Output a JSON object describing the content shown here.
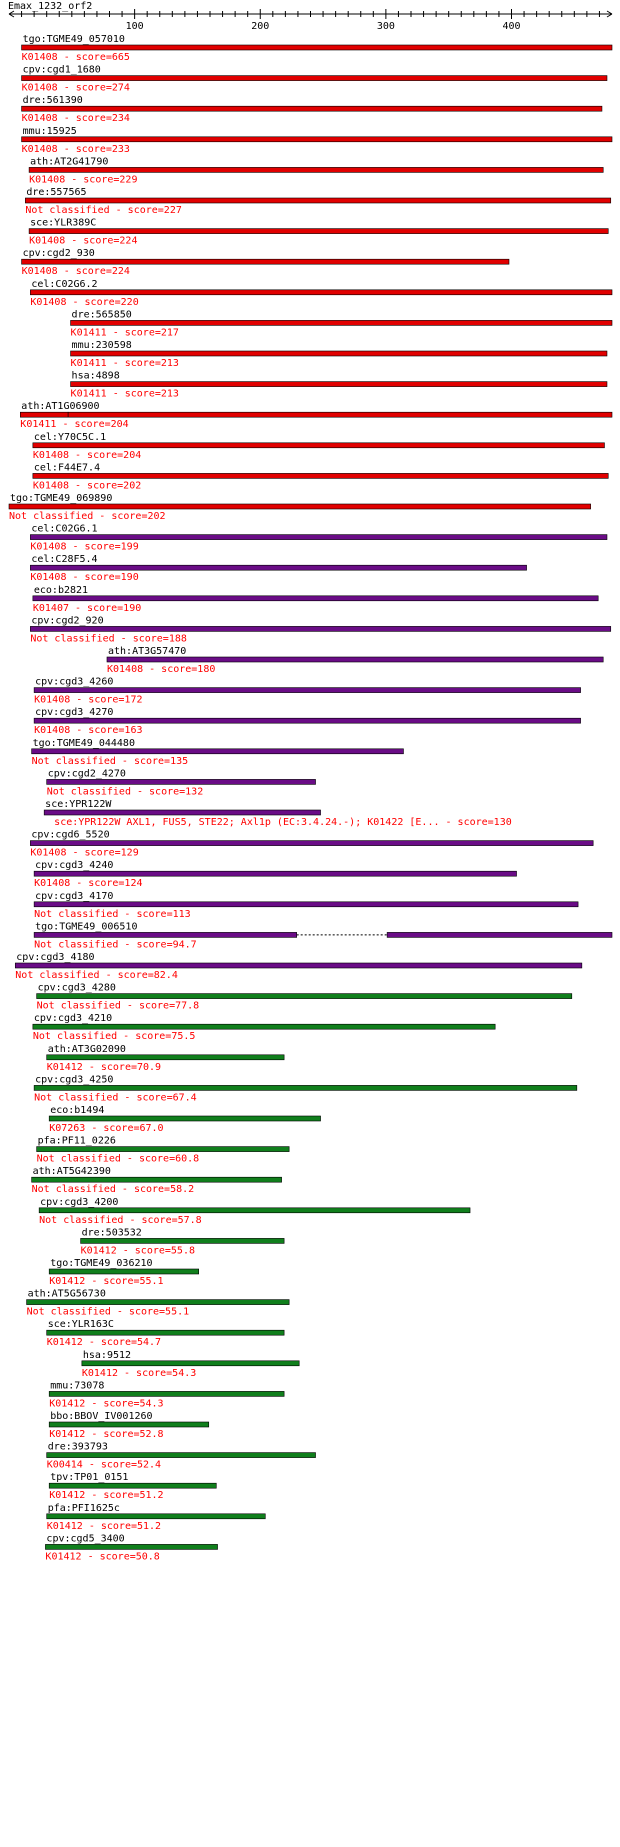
{
  "chart_data": {
    "type": "bar",
    "title": "Emax_1232_orf2",
    "axis": {
      "min": 0,
      "max": 480,
      "ticks": [
        100,
        200,
        300,
        400
      ]
    },
    "colors": {
      "red": "#e10000",
      "purple": "#6a0c86",
      "green": "#107f1c",
      "outline": "#000000",
      "text_info": "#ff0000",
      "text_gene": "#000000",
      "axis": "#000000"
    },
    "hits": [
      {
        "gene": "tgo:TGME49_057010",
        "info": "K01408 - score=665",
        "color": "red",
        "segments": [
          [
            10,
            480
          ]
        ]
      },
      {
        "gene": "cpv:cgd1_1680",
        "info": "K01408 - score=274",
        "color": "red",
        "segments": [
          [
            10,
            476
          ]
        ]
      },
      {
        "gene": "dre:561390",
        "info": "K01408 - score=234",
        "color": "red",
        "segments": [
          [
            10,
            472
          ]
        ]
      },
      {
        "gene": "mmu:15925",
        "info": "K01408 - score=233",
        "color": "red",
        "segments": [
          [
            10,
            480
          ]
        ]
      },
      {
        "gene": "ath:AT2G41790",
        "info": "K01408 - score=229",
        "color": "red",
        "segments": [
          [
            16,
            473
          ]
        ]
      },
      {
        "gene": "dre:557565",
        "info": "Not classified - score=227",
        "color": "red",
        "segments": [
          [
            13,
            479
          ]
        ]
      },
      {
        "gene": "sce:YLR389C",
        "info": "K01408 - score=224",
        "color": "red",
        "segments": [
          [
            16,
            477
          ]
        ]
      },
      {
        "gene": "cpv:cgd2_930",
        "info": "K01408 - score=224",
        "color": "red",
        "segments": [
          [
            10,
            398
          ]
        ]
      },
      {
        "gene": "cel:C02G6.2",
        "info": "K01408 - score=220",
        "color": "red",
        "segments": [
          [
            17,
            480
          ]
        ]
      },
      {
        "gene": "dre:565850",
        "info": "K01411 - score=217",
        "color": "red",
        "segments": [
          [
            49,
            480
          ]
        ]
      },
      {
        "gene": "mmu:230598",
        "info": "K01411 - score=213",
        "color": "red",
        "segments": [
          [
            49,
            476
          ]
        ]
      },
      {
        "gene": "hsa:4898",
        "info": "K01411 - score=213",
        "color": "red",
        "segments": [
          [
            49,
            476
          ]
        ]
      },
      {
        "gene": "ath:AT1G06900",
        "info": "K01411 - score=204",
        "color": "red",
        "segments": [
          [
            47,
            480
          ],
          [
            9,
            47
          ]
        ]
      },
      {
        "gene": "cel:Y70C5C.1",
        "info": "K01408 - score=204",
        "color": "red",
        "segments": [
          [
            19,
            474
          ]
        ]
      },
      {
        "gene": "cel:F44E7.4",
        "info": "K01408 - score=202",
        "color": "red",
        "segments": [
          [
            19,
            477
          ]
        ]
      },
      {
        "gene": "tgo:TGME49_069890",
        "info": "Not classified - score=202",
        "color": "red",
        "segments": [
          [
            0,
            463
          ]
        ]
      },
      {
        "gene": "cel:C02G6.1",
        "info": "K01408 - score=199",
        "color": "purple",
        "segments": [
          [
            17,
            476
          ]
        ]
      },
      {
        "gene": "cel:C28F5.4",
        "info": "K01408 - score=190",
        "color": "purple",
        "segments": [
          [
            17,
            412
          ]
        ]
      },
      {
        "gene": "eco:b2821",
        "info": "K01407 - score=190",
        "color": "purple",
        "segments": [
          [
            19,
            469
          ]
        ]
      },
      {
        "gene": "cpv:cgd2_920",
        "info": "Not classified - score=188",
        "color": "purple",
        "segments": [
          [
            17,
            479
          ]
        ]
      },
      {
        "gene": "ath:AT3G57470",
        "info": "K01408 - score=180",
        "color": "purple",
        "segments": [
          [
            78,
            473
          ]
        ]
      },
      {
        "gene": "cpv:cgd3_4260",
        "info": "K01408 - score=172",
        "color": "purple",
        "segments": [
          [
            20,
            455
          ]
        ]
      },
      {
        "gene": "cpv:cgd3_4270",
        "info": "K01408 - score=163",
        "color": "purple",
        "segments": [
          [
            20,
            455
          ]
        ]
      },
      {
        "gene": "tgo:TGME49_044480",
        "info": "Not classified - score=135",
        "color": "purple",
        "segments": [
          [
            18,
            314
          ]
        ]
      },
      {
        "gene": "cpv:cgd2_4270",
        "info": "Not classified - score=132",
        "color": "purple",
        "segments": [
          [
            30,
            244
          ]
        ]
      },
      {
        "gene": "sce:YPR122W",
        "info": "sce:YPR122W  AXL1, FUS5, STE22; Axl1p (EC:3.4.24.-); K01422  [E... - score=130",
        "color": "purple",
        "segments": [
          [
            28,
            248
          ]
        ]
      },
      {
        "gene": "cpv:cgd6_5520",
        "info": "K01408 - score=129",
        "color": "purple",
        "segments": [
          [
            17,
            465
          ]
        ]
      },
      {
        "gene": "cpv:cgd3_4240",
        "info": "K01408 - score=124",
        "color": "purple",
        "segments": [
          [
            20,
            404
          ]
        ]
      },
      {
        "gene": "cpv:cgd3_4170",
        "info": "Not classified - score=113",
        "color": "purple",
        "segments": [
          [
            20,
            453
          ]
        ]
      },
      {
        "gene": "tgo:TGME49_006510",
        "info": "Not classified - score=94.7",
        "color": "purple",
        "segments": [
          [
            20,
            229
          ],
          [
            301,
            480
          ]
        ],
        "gaps": [
          [
            229,
            301
          ]
        ]
      },
      {
        "gene": "cpv:cgd3_4180",
        "info": "Not classified - score=82.4",
        "color": "purple",
        "segments": [
          [
            5,
            456
          ]
        ]
      },
      {
        "gene": "cpv:cgd3_4280",
        "info": "Not classified - score=77.8",
        "color": "green",
        "segments": [
          [
            22,
            448
          ]
        ]
      },
      {
        "gene": "cpv:cgd3_4210",
        "info": "Not classified - score=75.5",
        "color": "green",
        "segments": [
          [
            19,
            387
          ]
        ]
      },
      {
        "gene": "ath:AT3G02090",
        "info": "K01412 - score=70.9",
        "color": "green",
        "segments": [
          [
            30,
            219
          ]
        ]
      },
      {
        "gene": "cpv:cgd3_4250",
        "info": "Not classified - score=67.4",
        "color": "green",
        "segments": [
          [
            20,
            452
          ]
        ]
      },
      {
        "gene": "eco:b1494",
        "info": "K07263 - score=67.0",
        "color": "green",
        "segments": [
          [
            32,
            248
          ]
        ]
      },
      {
        "gene": "pfa:PF11_0226",
        "info": "Not classified - score=60.8",
        "color": "green",
        "segments": [
          [
            22,
            223
          ]
        ]
      },
      {
        "gene": "ath:AT5G42390",
        "info": "Not classified - score=58.2",
        "color": "green",
        "segments": [
          [
            18,
            217
          ]
        ]
      },
      {
        "gene": "cpv:cgd3_4200",
        "info": "Not classified - score=57.8",
        "color": "green",
        "segments": [
          [
            24,
            367
          ]
        ]
      },
      {
        "gene": "dre:503532",
        "info": "K01412 - score=55.8",
        "color": "green",
        "segments": [
          [
            57,
            219
          ]
        ]
      },
      {
        "gene": "tgo:TGME49_036210",
        "info": "K01412 - score=55.1",
        "color": "green",
        "segments": [
          [
            32,
            151
          ]
        ]
      },
      {
        "gene": "ath:AT5G56730",
        "info": "Not classified - score=55.1",
        "color": "green",
        "segments": [
          [
            14,
            223
          ]
        ]
      },
      {
        "gene": "sce:YLR163C",
        "info": "K01412 - score=54.7",
        "color": "green",
        "segments": [
          [
            30,
            219
          ]
        ]
      },
      {
        "gene": "hsa:9512",
        "info": "K01412 - score=54.3",
        "color": "green",
        "segments": [
          [
            58,
            231
          ]
        ]
      },
      {
        "gene": "mmu:73078",
        "info": "K01412 - score=54.3",
        "color": "green",
        "segments": [
          [
            32,
            219
          ]
        ]
      },
      {
        "gene": "bbo:BBOV_IV001260",
        "info": "K01412 - score=52.8",
        "color": "green",
        "segments": [
          [
            32,
            159
          ]
        ]
      },
      {
        "gene": "dre:393793",
        "info": "K00414 - score=52.4",
        "color": "green",
        "segments": [
          [
            30,
            244
          ]
        ]
      },
      {
        "gene": "tpv:TP01_0151",
        "info": "K01412 - score=51.2",
        "color": "green",
        "segments": [
          [
            32,
            165
          ]
        ]
      },
      {
        "gene": "pfa:PFI1625c",
        "info": "K01412 - score=51.2",
        "color": "green",
        "segments": [
          [
            30,
            204
          ]
        ]
      },
      {
        "gene": "cpv:cgd5_3400",
        "info": "K01412 - score=50.8",
        "color": "green",
        "segments": [
          [
            29,
            166
          ]
        ]
      }
    ]
  }
}
